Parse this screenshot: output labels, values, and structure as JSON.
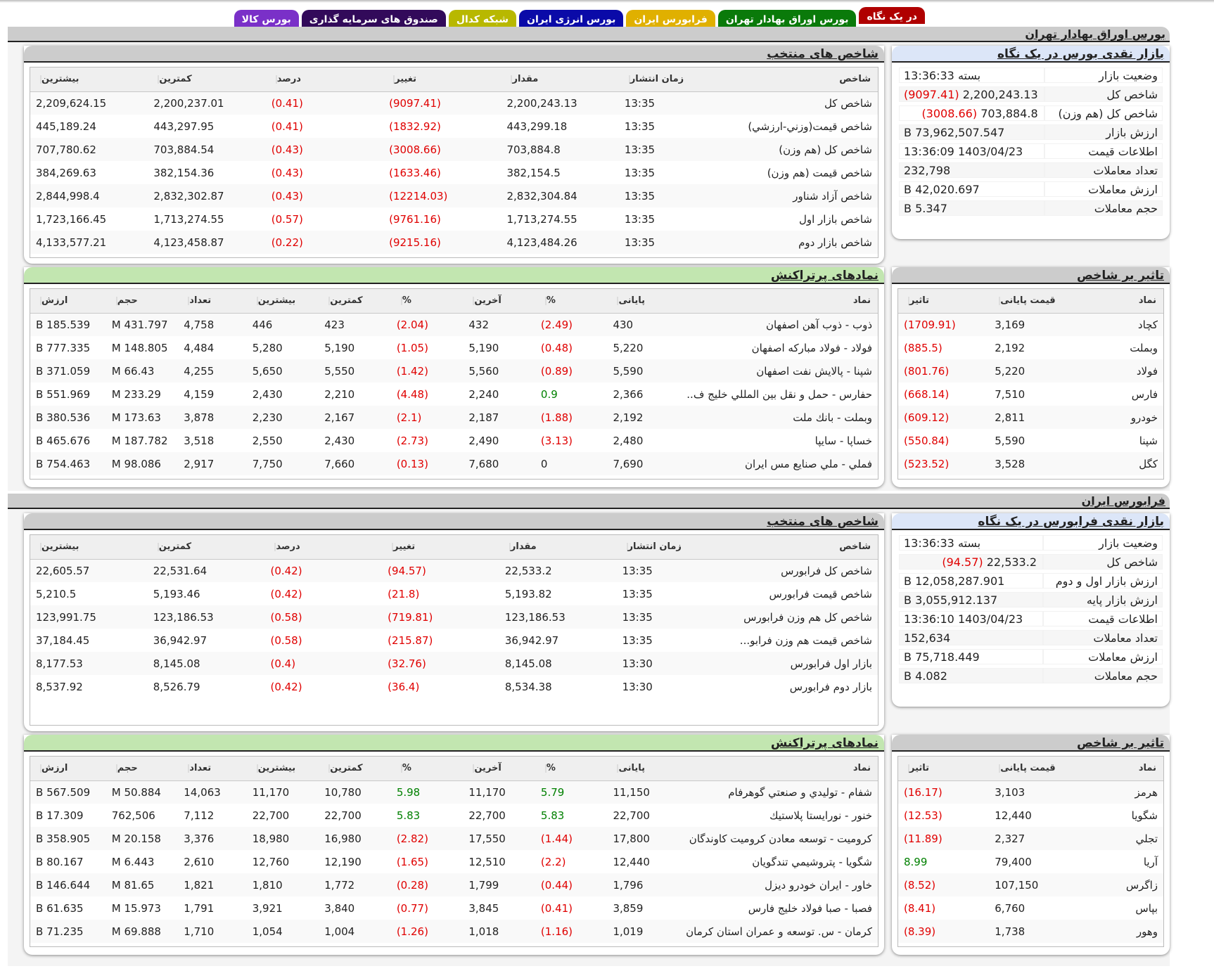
{
  "tabs": [
    {
      "label": "در یک نگاه",
      "color": "#b00000",
      "active": true
    },
    {
      "label": "بورس اوراق بهادار تهران",
      "color": "#0a7a0a"
    },
    {
      "label": "فرابورس ایران",
      "color": "#e0b000"
    },
    {
      "label": "بورس انرژی ایران",
      "color": "#0a0aa8"
    },
    {
      "label": "شبکه کدال",
      "color": "#b8b800"
    },
    {
      "label": "صندوق های سرمایه گذاری",
      "color": "#320a5a"
    },
    {
      "label": "بورس کالا",
      "color": "#7a30c8"
    }
  ],
  "tse": {
    "section_title": "بورس اوراق بهادار تهران",
    "glance": {
      "title": "بازار نقدی بورس در یک نگاه",
      "rows": [
        {
          "label": "وضعیت بازار",
          "value": "بسته 13:36:33"
        },
        {
          "label": "شاخص کل",
          "value": "2,200,243.13",
          "change": "(9097.41)"
        },
        {
          "label": "شاخص کل (هم وزن)",
          "value": "703,884.8",
          "change": "(3008.66)"
        },
        {
          "label": "ارزش بازار",
          "value": "73,962,507.547 B"
        },
        {
          "label": "اطلاعات قیمت",
          "value": "1403/04/23 13:36:09"
        },
        {
          "label": "تعداد معاملات",
          "value": "232,798"
        },
        {
          "label": "ارزش معاملات",
          "value": "42,020.697 B"
        },
        {
          "label": "حجم معاملات",
          "value": "5.347 B"
        }
      ]
    },
    "indices": {
      "title": "شاخص های منتخب",
      "columns": [
        "شاخص",
        "زمان انتشار",
        "مقدار",
        "تغییر",
        "درصد",
        "کمترین",
        "بیشترین"
      ],
      "rows": [
        [
          "شاخص کل",
          "13:35",
          "2,200,243.13",
          "(9097.41)",
          "(0.41)",
          "2,200,237.01",
          "2,209,624.15"
        ],
        [
          "شاخص قیمت(وزني-ارزشي)",
          "13:35",
          "443,299.18",
          "(1832.92)",
          "(0.41)",
          "443,297.95",
          "445,189.24"
        ],
        [
          "شاخص کل (هم وزن)",
          "13:35",
          "703,884.8",
          "(3008.66)",
          "(0.43)",
          "703,884.54",
          "707,780.62"
        ],
        [
          "شاخص قیمت (هم وزن)",
          "13:35",
          "382,154.5",
          "(1633.46)",
          "(0.43)",
          "382,154.36",
          "384,269.63"
        ],
        [
          "شاخص آزاد شناور",
          "13:35",
          "2,832,304.84",
          "(12214.03)",
          "(0.43)",
          "2,832,302.87",
          "2,844,998.4"
        ],
        [
          "شاخص بازار اول",
          "13:35",
          "1,713,274.55",
          "(9761.16)",
          "(0.57)",
          "1,713,274.55",
          "1,723,166.45"
        ],
        [
          "شاخص بازار دوم",
          "13:35",
          "4,123,484.26",
          "(9215.16)",
          "(0.22)",
          "4,123,458.87",
          "4,133,577.21"
        ]
      ]
    },
    "impact": {
      "title": "تاثیر بر شاخص",
      "columns": [
        "نماد",
        "قیمت پایانی",
        "تاثیر"
      ],
      "rows": [
        [
          "کچاد",
          "3,169",
          "(1709.91)"
        ],
        [
          "وبملت",
          "2,192",
          "(885.5)"
        ],
        [
          "فولاد",
          "5,220",
          "(801.76)"
        ],
        [
          "فارس",
          "7,510",
          "(668.14)"
        ],
        [
          "خودرو",
          "2,811",
          "(609.12)"
        ],
        [
          "شپنا",
          "5,590",
          "(550.84)"
        ],
        [
          "کگل",
          "3,528",
          "(523.52)"
        ]
      ]
    },
    "active": {
      "title": "نمادهای پرتراکنش",
      "columns": [
        "نماد",
        "پایانی",
        "%",
        "آخرین",
        "%",
        "کمترین",
        "بیشترین",
        "تعداد",
        "حجم",
        "ارزش"
      ],
      "rows": [
        [
          "ذوب - ذوب آهن اصفهان",
          "430",
          "(2.49)",
          "432",
          "(2.04)",
          "423",
          "446",
          "4,758",
          "431.797 M",
          "185.539 B"
        ],
        [
          "فولاد - فولاد مبارکه اصفهان",
          "5,220",
          "(0.48)",
          "5,190",
          "(1.05)",
          "5,190",
          "5,280",
          "4,484",
          "148.805 M",
          "777.335 B"
        ],
        [
          "شپنا - پالایش نفت اصفهان",
          "5,590",
          "(0.89)",
          "5,560",
          "(1.42)",
          "5,550",
          "5,650",
          "4,255",
          "66.43 M",
          "371.059 B"
        ],
        [
          "حفارس - حمل و نقل بین المللي خلیج ف..",
          "2,366",
          "0.9",
          "2,240",
          "(4.48)",
          "2,210",
          "2,430",
          "4,159",
          "233.29 M",
          "551.969 B"
        ],
        [
          "وبملت - بانك ملت",
          "2,192",
          "(1.88)",
          "2,187",
          "(2.1)",
          "2,167",
          "2,230",
          "3,878",
          "173.63 M",
          "380.536 B"
        ],
        [
          "خساپا - سايپا",
          "2,480",
          "(3.13)",
          "2,490",
          "(2.73)",
          "2,430",
          "2,550",
          "3,518",
          "187.782 M",
          "465.676 B"
        ],
        [
          "فملي - ملي صنايع مس ايران",
          "7,690",
          "0",
          "7,680",
          "(0.13)",
          "7,660",
          "7,750",
          "2,917",
          "98.086 M",
          "754.463 B"
        ]
      ]
    }
  },
  "ifb": {
    "section_title": "فرابورس ایران",
    "glance": {
      "title": "بازار نقدی فرابورس در یک نگاه",
      "rows": [
        {
          "label": "وضعیت بازار",
          "value": "بسته 13:36:33"
        },
        {
          "label": "شاخص کل",
          "value": "22,533.2",
          "change": "(94.57)"
        },
        {
          "label": "ارزش بازار اول و دوم",
          "value": "12,058,287.901 B"
        },
        {
          "label": "ارزش بازار پایه",
          "value": "3,055,912.137 B"
        },
        {
          "label": "اطلاعات قیمت",
          "value": "1403/04/23 13:36:10"
        },
        {
          "label": "تعداد معاملات",
          "value": "152,634"
        },
        {
          "label": "ارزش معاملات",
          "value": "75,718.449 B"
        },
        {
          "label": "حجم معاملات",
          "value": "4.082 B"
        }
      ]
    },
    "indices": {
      "title": "شاخص های منتخب",
      "columns": [
        "شاخص",
        "زمان انتشار",
        "مقدار",
        "تغییر",
        "درصد",
        "کمترین",
        "بیشترین"
      ],
      "rows": [
        [
          "شاخص کل فرابورس",
          "13:35",
          "22,533.2",
          "(94.57)",
          "(0.42)",
          "22,531.64",
          "22,605.57"
        ],
        [
          "شاخص قیمت فرابورس",
          "13:35",
          "5,193.82",
          "(21.8)",
          "(0.42)",
          "5,193.46",
          "5,210.5"
        ],
        [
          "شاخص کل هم وزن فرابورس",
          "13:35",
          "123,186.53",
          "(719.81)",
          "(0.58)",
          "123,186.53",
          "123,991.75"
        ],
        [
          "شاخص قیمت هم وزن فرابو...",
          "13:35",
          "36,942.97",
          "(215.87)",
          "(0.58)",
          "36,942.97",
          "37,184.45"
        ],
        [
          "بازار اول فرابورس",
          "13:30",
          "8,145.08",
          "(32.76)",
          "(0.4)",
          "8,145.08",
          "8,177.53"
        ],
        [
          "بازار دوم فرابورس",
          "13:30",
          "8,534.38",
          "(36.4)",
          "(0.42)",
          "8,526.79",
          "8,537.92"
        ]
      ]
    },
    "impact": {
      "title": "تاثیر بر شاخص",
      "columns": [
        "نماد",
        "قیمت پایانی",
        "تاثیر"
      ],
      "rows": [
        [
          "هرمز",
          "3,103",
          "(16.17)"
        ],
        [
          "شگویا",
          "12,440",
          "(12.53)"
        ],
        [
          "تجلي",
          "2,327",
          "(11.89)"
        ],
        [
          "آریا",
          "79,400",
          "8.99"
        ],
        [
          "زاگرس",
          "107,150",
          "(8.52)"
        ],
        [
          "بپاس",
          "6,760",
          "(8.41)"
        ],
        [
          "وهور",
          "1,738",
          "(8.39)"
        ]
      ]
    },
    "active": {
      "title": "نمادهای پرتراکنش",
      "columns": [
        "نماد",
        "پایانی",
        "%",
        "آخرین",
        "%",
        "کمترین",
        "بیشترین",
        "تعداد",
        "حجم",
        "ارزش"
      ],
      "rows": [
        [
          "شفام - توليدي و صنعتي گوهرفام",
          "11,150",
          "5.79",
          "11,170",
          "5.98",
          "10,780",
          "11,170",
          "14,063",
          "50.884 M",
          "567.509 B"
        ],
        [
          "خنور - نورايستا پلاستيك",
          "22,700",
          "5.83",
          "22,700",
          "5.83",
          "22,700",
          "22,700",
          "7,112",
          "762,506",
          "17.309 B"
        ],
        [
          "كروميت - توسعه معادن كروميت كاوندگان",
          "17,800",
          "(1.44)",
          "17,550",
          "(2.82)",
          "16,980",
          "18,980",
          "3,376",
          "20.158 M",
          "358.905 B"
        ],
        [
          "شگویا - پتروشيمي تندگويان",
          "12,440",
          "(2.2)",
          "12,510",
          "(1.65)",
          "12,190",
          "12,760",
          "2,610",
          "6.443 M",
          "80.167 B"
        ],
        [
          "خاور - ايران خودرو ديزل",
          "1,796",
          "(0.44)",
          "1,799",
          "(0.28)",
          "1,772",
          "1,810",
          "1,821",
          "81.65 M",
          "146.644 B"
        ],
        [
          "فصبا - صبا فولاد خليج فارس",
          "3,859",
          "(0.41)",
          "3,845",
          "(0.77)",
          "3,840",
          "3,921",
          "1,791",
          "15.973 M",
          "61.635 B"
        ],
        [
          "كرمان - س. توسعه و عمران استان كرمان",
          "1,019",
          "(1.16)",
          "1,018",
          "(1.26)",
          "1,004",
          "1,054",
          "1,710",
          "69.888 M",
          "71.235 B"
        ]
      ]
    }
  },
  "colors": {
    "negative": "#e00000",
    "positive": "#008000",
    "section_gray": "#cccccc",
    "glance_head": "#dce6f8",
    "active_head": "#c2e6b0"
  }
}
